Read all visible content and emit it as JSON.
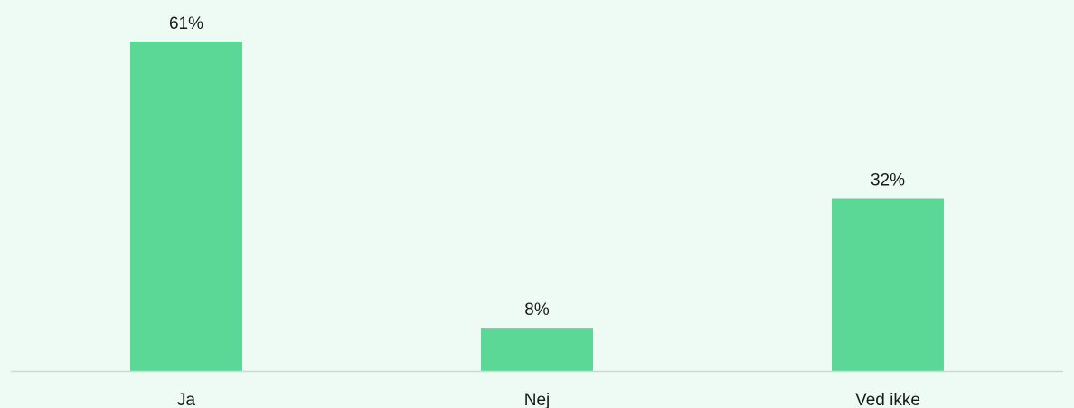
{
  "chart_data": {
    "type": "bar",
    "categories": [
      "Ja",
      "Nej",
      "Ved ikke"
    ],
    "values": [
      61,
      8,
      32
    ],
    "value_labels": [
      "61%",
      "8%",
      "32%"
    ],
    "ylim": [
      0,
      61
    ],
    "grid": false,
    "legend": "none",
    "bar_color": "#5cd896",
    "background_color": "#eefbf4",
    "axis_color": "#cfd8d3"
  }
}
